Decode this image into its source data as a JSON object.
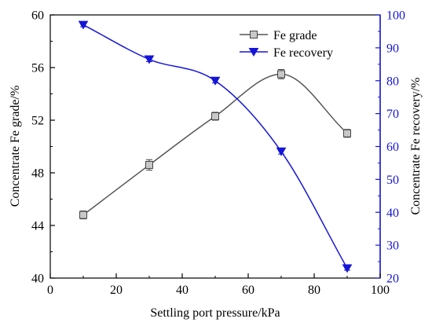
{
  "chart_data": {
    "type": "line",
    "xlabel": "Settling port pressure/kPa",
    "ylabel_left": "Concentrate Fe grade/%",
    "ylabel_right": "Concentrate Fe recovery/%",
    "xlim": [
      0,
      100
    ],
    "ylim_left": [
      40,
      60
    ],
    "ylim_right": [
      20,
      100
    ],
    "x_ticks": [
      0,
      20,
      40,
      60,
      80,
      100
    ],
    "y_left_ticks": [
      40,
      44,
      48,
      52,
      56,
      60
    ],
    "y_right_ticks": [
      20,
      30,
      40,
      50,
      60,
      70,
      80,
      90,
      100
    ],
    "grid": false,
    "legend_position": "top-right",
    "series": [
      {
        "name": "Fe grade",
        "axis": "left",
        "marker": "square",
        "color": "#555555",
        "x": [
          10,
          30,
          50,
          70,
          90
        ],
        "values": [
          44.8,
          48.6,
          52.3,
          55.5,
          51.0
        ],
        "errors": [
          0.3,
          0.4,
          0.3,
          0.35,
          0.3
        ]
      },
      {
        "name": "Fe recovery",
        "axis": "right",
        "marker": "triangle-down",
        "color": "#1515d8",
        "x": [
          10,
          30,
          50,
          70,
          90
        ],
        "values": [
          97.0,
          86.5,
          80.0,
          58.5,
          23.0
        ],
        "errors": [
          0.6,
          0.7,
          0.7,
          0.8,
          0.6
        ]
      }
    ]
  }
}
